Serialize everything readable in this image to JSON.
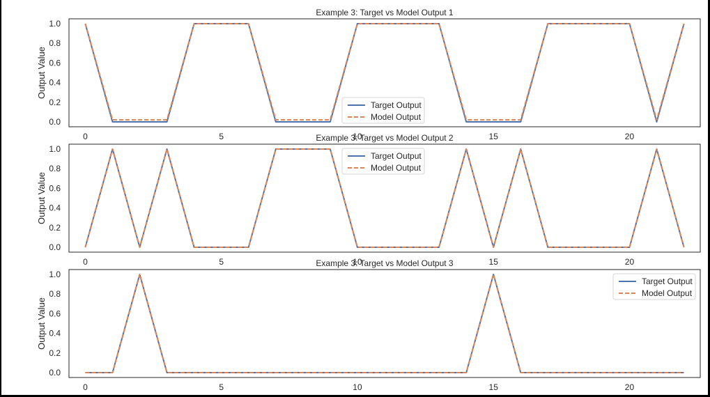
{
  "chart_data": [
    {
      "type": "line",
      "title": "Example 3: Target vs Model Output 1",
      "xlabel": "",
      "ylabel": "Output Value",
      "xlim": [
        -0.6,
        22.6
      ],
      "ylim": [
        -0.05,
        1.05
      ],
      "xticks": [
        0,
        5,
        10,
        15,
        20
      ],
      "yticks": [
        0.0,
        0.2,
        0.4,
        0.6,
        0.8,
        1.0
      ],
      "xtick_labels": [
        "0",
        "5",
        "10",
        "15",
        "20"
      ],
      "ytick_labels": [
        "0.0",
        "0.2",
        "0.4",
        "0.6",
        "0.8",
        "1.0"
      ],
      "grid": false,
      "legend_position": "center",
      "x": [
        0,
        1,
        2,
        3,
        4,
        5,
        6,
        7,
        8,
        9,
        10,
        11,
        12,
        13,
        14,
        15,
        16,
        17,
        18,
        19,
        20,
        21,
        22
      ],
      "series": [
        {
          "name": "Target Output",
          "color": "#4c72b0",
          "style": "solid",
          "values": [
            1,
            0,
            0,
            0,
            1,
            1,
            1,
            0,
            0,
            0,
            1,
            1,
            1,
            1,
            0,
            0,
            0,
            1,
            1,
            1,
            1,
            0,
            1
          ]
        },
        {
          "name": "Model Output",
          "color": "#dd8452",
          "style": "dashed",
          "values": [
            1,
            0.02,
            0.02,
            0.02,
            1,
            1,
            1,
            0.02,
            0.02,
            0.02,
            1,
            1,
            1,
            1,
            0.02,
            0.02,
            0.02,
            1,
            1,
            1,
            1,
            0.02,
            1
          ]
        }
      ]
    },
    {
      "type": "line",
      "title": "Example 3: Target vs Model Output 2",
      "xlabel": "",
      "ylabel": "Output Value",
      "xlim": [
        -0.6,
        22.6
      ],
      "ylim": [
        -0.05,
        1.05
      ],
      "xticks": [
        0,
        5,
        10,
        15,
        20
      ],
      "yticks": [
        0.0,
        0.2,
        0.4,
        0.6,
        0.8,
        1.0
      ],
      "xtick_labels": [
        "0",
        "5",
        "10",
        "15",
        "20"
      ],
      "ytick_labels": [
        "0.0",
        "0.2",
        "0.4",
        "0.6",
        "0.8",
        "1.0"
      ],
      "grid": false,
      "legend_position": "upper center",
      "x": [
        0,
        1,
        2,
        3,
        4,
        5,
        6,
        7,
        8,
        9,
        10,
        11,
        12,
        13,
        14,
        15,
        16,
        17,
        18,
        19,
        20,
        21,
        22
      ],
      "series": [
        {
          "name": "Target Output",
          "color": "#4c72b0",
          "style": "solid",
          "values": [
            0,
            1,
            0,
            1,
            0,
            0,
            0,
            1,
            1,
            1,
            0,
            0,
            0,
            0,
            1,
            0,
            1,
            0,
            0,
            0,
            0,
            1,
            0
          ]
        },
        {
          "name": "Model Output",
          "color": "#dd8452",
          "style": "dashed",
          "values": [
            0,
            1,
            0,
            1,
            0,
            0,
            0,
            1,
            1,
            1,
            0,
            0,
            0,
            0,
            1,
            0,
            1,
            0,
            0,
            0,
            0,
            1,
            0
          ]
        }
      ]
    },
    {
      "type": "line",
      "title": "Example 3: Target vs Model Output 3",
      "xlabel": "",
      "ylabel": "Output Value",
      "xlim": [
        -0.6,
        22.6
      ],
      "ylim": [
        -0.05,
        1.05
      ],
      "xticks": [
        0,
        5,
        10,
        15,
        20
      ],
      "yticks": [
        0.0,
        0.2,
        0.4,
        0.6,
        0.8,
        1.0
      ],
      "xtick_labels": [
        "0",
        "5",
        "10",
        "15",
        "20"
      ],
      "ytick_labels": [
        "0.0",
        "0.2",
        "0.4",
        "0.6",
        "0.8",
        "1.0"
      ],
      "grid": false,
      "legend_position": "upper right",
      "x": [
        0,
        1,
        2,
        3,
        4,
        5,
        6,
        7,
        8,
        9,
        10,
        11,
        12,
        13,
        14,
        15,
        16,
        17,
        18,
        19,
        20,
        21,
        22
      ],
      "series": [
        {
          "name": "Target Output",
          "color": "#4c72b0",
          "style": "solid",
          "values": [
            0,
            0,
            1,
            0,
            0,
            0,
            0,
            0,
            0,
            0,
            0,
            0,
            0,
            0,
            0,
            1,
            0,
            0,
            0,
            0,
            0,
            0,
            0
          ]
        },
        {
          "name": "Model Output",
          "color": "#dd8452",
          "style": "dashed",
          "values": [
            0,
            0,
            1,
            0,
            0,
            0,
            0,
            0,
            0,
            0,
            0,
            0,
            0,
            0,
            0,
            1,
            0,
            0,
            0,
            0,
            0,
            0,
            0
          ]
        }
      ]
    }
  ]
}
